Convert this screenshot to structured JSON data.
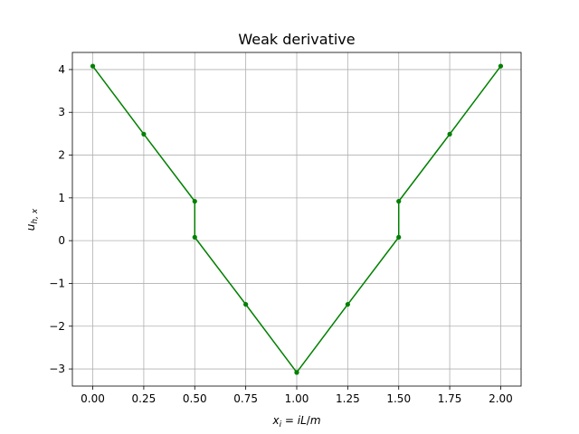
{
  "chart_data": {
    "type": "line",
    "title": "Weak derivative",
    "xlabel": "x_i = iL/m",
    "ylabel": "u_h,x",
    "xlim": [
      -0.1,
      2.1
    ],
    "ylim": [
      -3.4,
      4.4
    ],
    "xticks": [
      0.0,
      0.25,
      0.5,
      0.75,
      1.0,
      1.25,
      1.5,
      1.75,
      2.0
    ],
    "xtick_labels": [
      "0.00",
      "0.25",
      "0.50",
      "0.75",
      "1.00",
      "1.25",
      "1.50",
      "1.75",
      "2.00"
    ],
    "yticks": [
      -3,
      -2,
      -1,
      0,
      1,
      2,
      3,
      4
    ],
    "ytick_labels": [
      "−3",
      "−2",
      "−1",
      "0",
      "1",
      "2",
      "3",
      "4"
    ],
    "grid": true,
    "series": [
      {
        "color": "#008000",
        "marker": "dot",
        "x": [
          0.0,
          0.25,
          0.5,
          0.5,
          0.75,
          1.0,
          1.0,
          1.25,
          1.5,
          1.5,
          1.75,
          2.0
        ],
        "y": [
          4.08,
          2.49,
          0.92,
          0.08,
          -1.49,
          -3.08,
          -3.08,
          -1.49,
          0.08,
          0.92,
          2.49,
          4.08
        ]
      }
    ]
  }
}
